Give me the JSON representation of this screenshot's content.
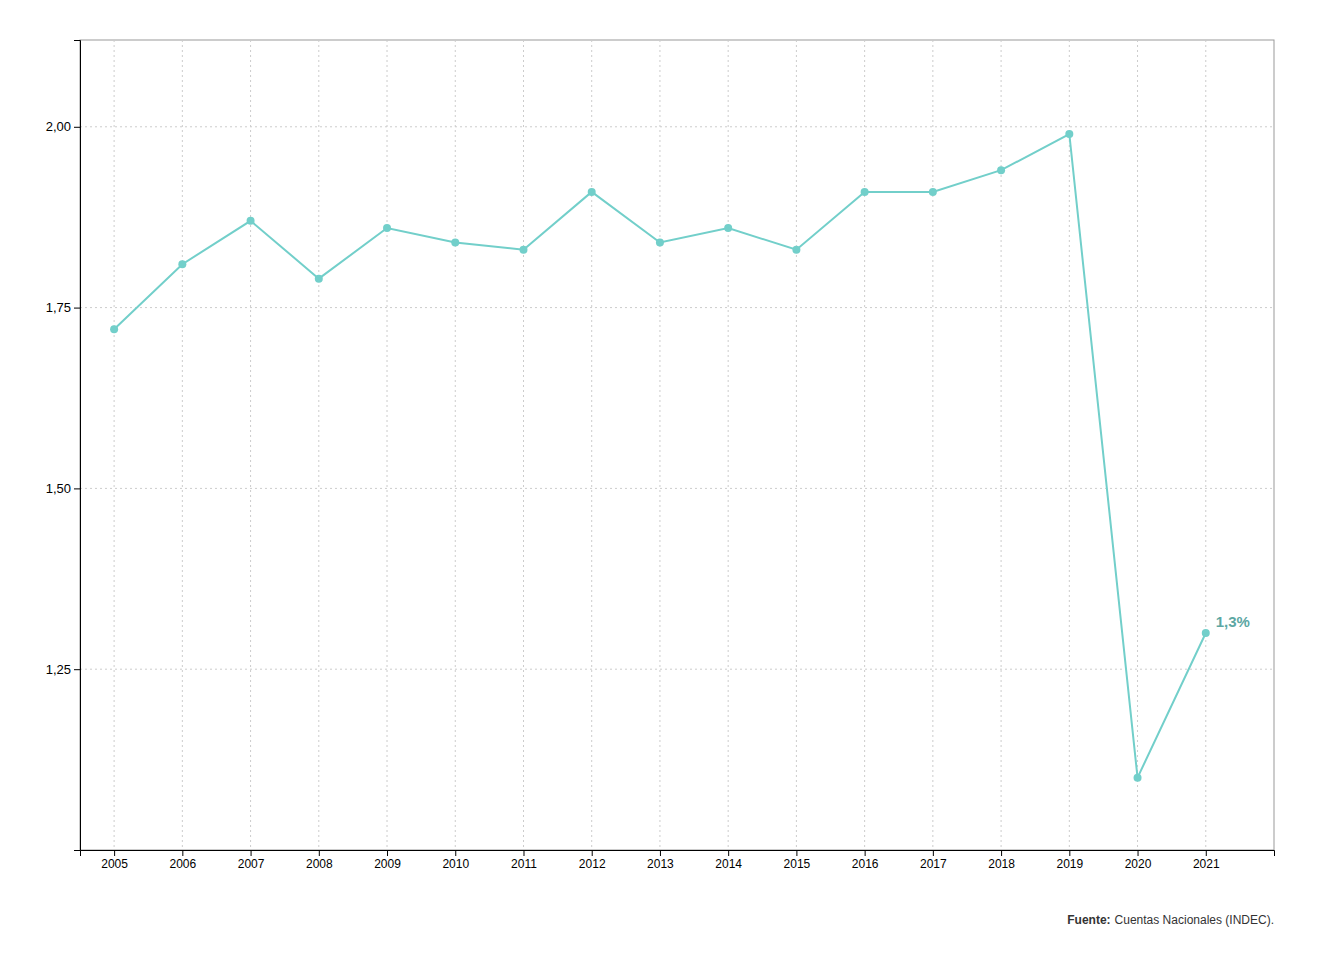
{
  "chart_data": {
    "type": "line",
    "x": [
      2005,
      2006,
      2007,
      2008,
      2009,
      2010,
      2011,
      2012,
      2013,
      2014,
      2015,
      2016,
      2017,
      2018,
      2019,
      2020,
      2021
    ],
    "values": [
      1.72,
      1.81,
      1.87,
      1.79,
      1.86,
      1.84,
      1.83,
      1.91,
      1.84,
      1.86,
      1.83,
      1.91,
      1.91,
      1.94,
      1.99,
      1.1,
      1.3
    ],
    "color": "#72CFCA",
    "marker": "circle",
    "xlim": [
      2004.5,
      2022.0
    ],
    "xticks": [
      2005,
      2006,
      2007,
      2008,
      2009,
      2010,
      2011,
      2012,
      2013,
      2014,
      2015,
      2016,
      2017,
      2018,
      2019,
      2020,
      2021
    ],
    "ylim": [
      1.0,
      2.12
    ],
    "yticks": [
      {
        "value": 1.25,
        "label": "1,25"
      },
      {
        "value": 1.5,
        "label": "1,50"
      },
      {
        "value": 1.75,
        "label": "1,75"
      },
      {
        "value": 2.0,
        "label": "2,00"
      }
    ],
    "grid": true,
    "annotations": [
      {
        "text": "1,3%",
        "x": 2021,
        "y": 1.3
      }
    ],
    "source": [
      "Fuente:",
      "Cuentas Nacionales (INDEC)."
    ]
  }
}
